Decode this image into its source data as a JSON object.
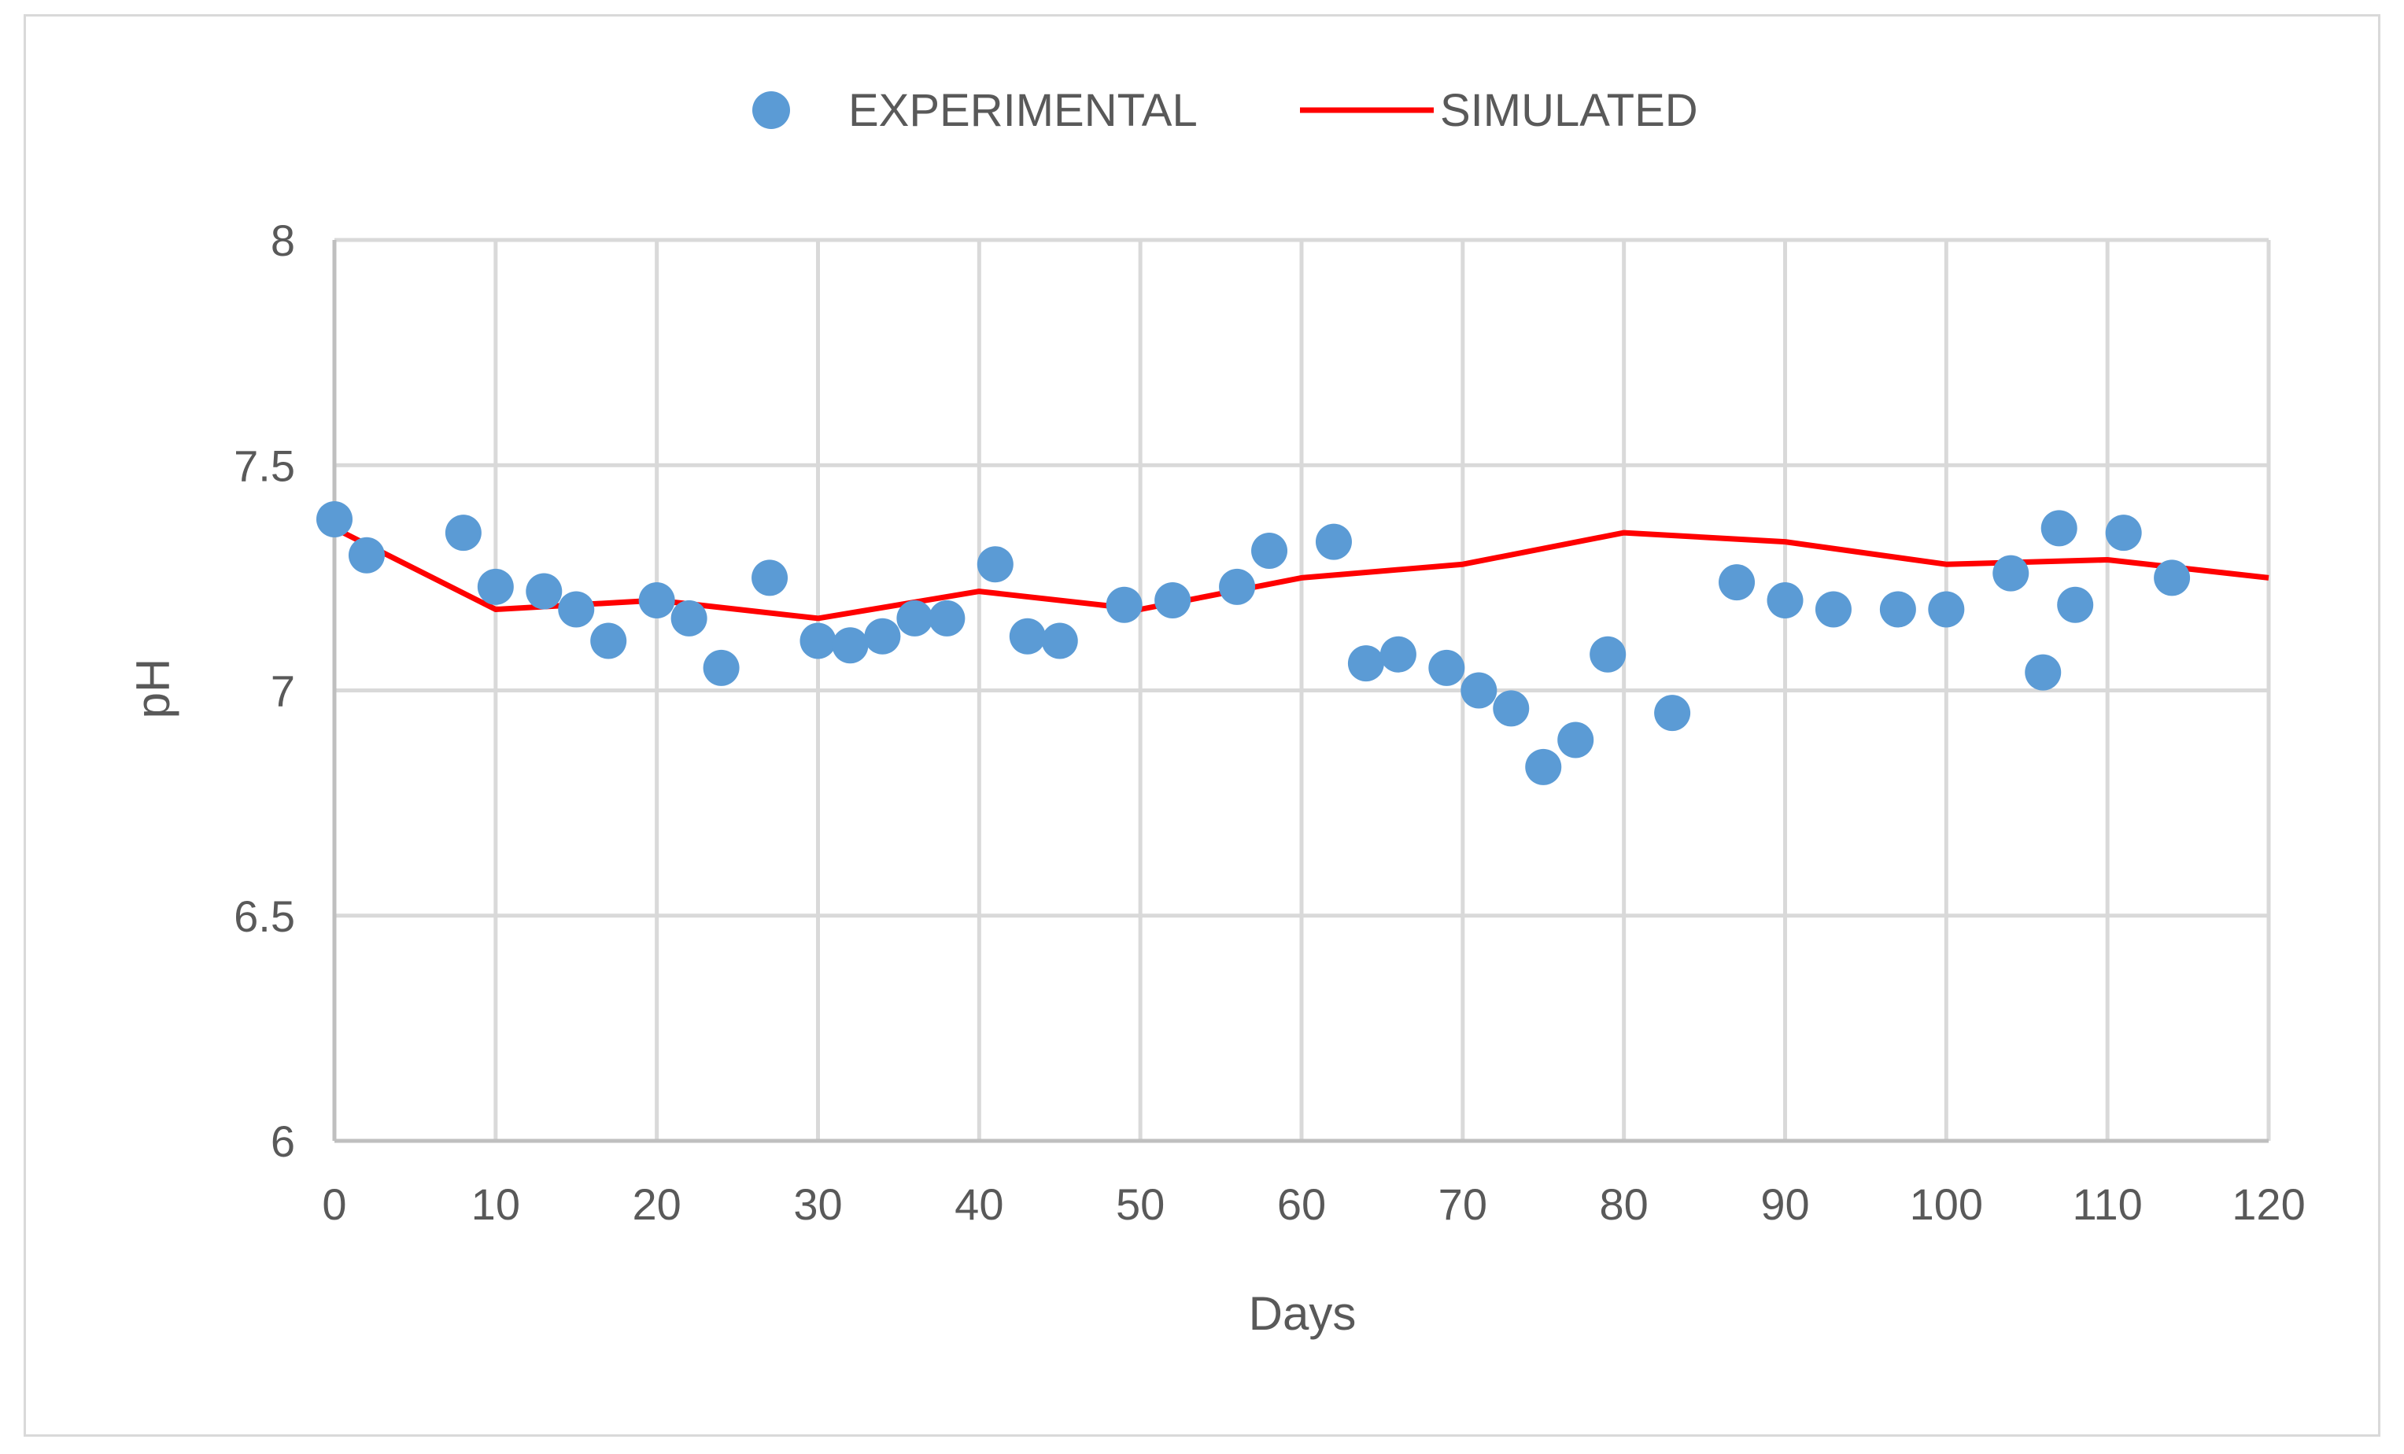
{
  "chart_data": {
    "type": "scatter",
    "title": "",
    "xlabel": "Days",
    "ylabel": "pH",
    "xlim": [
      0,
      120
    ],
    "ylim": [
      6,
      8
    ],
    "x_ticks": [
      0,
      10,
      20,
      30,
      40,
      50,
      60,
      70,
      80,
      90,
      100,
      110,
      120
    ],
    "y_ticks": [
      6,
      6.5,
      7,
      7.5,
      8
    ],
    "y_tick_labels": [
      "6",
      "6.5",
      "7",
      "7.5",
      "8"
    ],
    "grid": true,
    "legend_position": "top-center",
    "series": [
      {
        "name": "EXPERIMENTAL",
        "kind": "scatter",
        "color": "#5b9bd5",
        "x": [
          0,
          2,
          8,
          10,
          13,
          15,
          17,
          20,
          22,
          24,
          27,
          30,
          32,
          34,
          36,
          38,
          41,
          43,
          45,
          49,
          52,
          56,
          58,
          62,
          64,
          66,
          69,
          71,
          73,
          75,
          77,
          79,
          83,
          87,
          90,
          93,
          97,
          100,
          104,
          106,
          107,
          108,
          111,
          114
        ],
        "y": [
          7.38,
          7.3,
          7.35,
          7.23,
          7.22,
          7.18,
          7.11,
          7.2,
          7.16,
          7.05,
          7.25,
          7.11,
          7.1,
          7.12,
          7.16,
          7.16,
          7.28,
          7.12,
          7.11,
          7.19,
          7.2,
          7.23,
          7.31,
          7.33,
          7.06,
          7.08,
          7.05,
          7.0,
          6.96,
          6.83,
          6.89,
          7.08,
          6.95,
          7.24,
          7.2,
          7.18,
          7.18,
          7.18,
          7.26,
          7.04,
          7.36,
          7.19,
          7.35,
          7.25
        ]
      },
      {
        "name": "SIMULATED",
        "kind": "line",
        "color": "#ff0000",
        "x": [
          0,
          10,
          20,
          30,
          40,
          50,
          60,
          70,
          80,
          90,
          100,
          110,
          120
        ],
        "y": [
          7.36,
          7.18,
          7.2,
          7.16,
          7.22,
          7.18,
          7.25,
          7.28,
          7.35,
          7.33,
          7.28,
          7.29,
          7.25
        ]
      }
    ]
  }
}
